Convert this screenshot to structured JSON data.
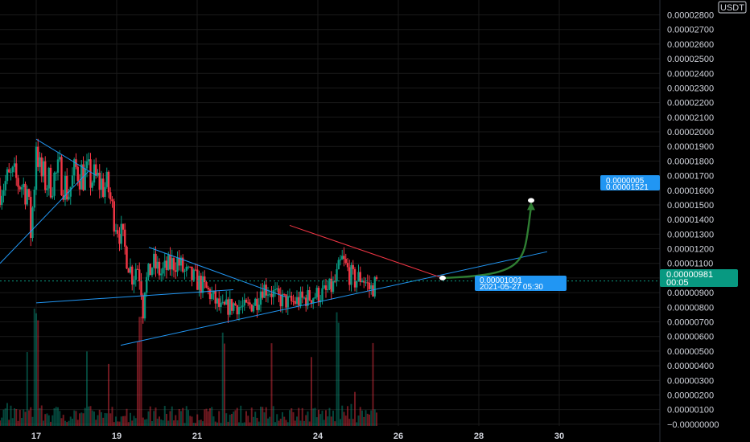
{
  "currency": {
    "label": "USDT"
  },
  "price_tag": {
    "value": "0.00000981",
    "sub": "00:05",
    "color": "#089981"
  },
  "callout_point": {
    "value": "0.00001001",
    "time": "2021-05-27 05:30"
  },
  "callout_target": {
    "value": "0.0000005",
    "sub": "0.00001521"
  },
  "colors": {
    "up": "#089981",
    "down": "#f23645",
    "trendline": "#2196f3",
    "resistance": "#f23645",
    "arrow": "#2e7d32",
    "callout_bg": "#2196f3",
    "grid": "#1a1a1a"
  },
  "chart_data": {
    "type": "candlestick",
    "x_ticks": [
      "17",
      "19",
      "21",
      "24",
      "26",
      "28",
      "30"
    ],
    "x_tick_days": [
      17,
      19,
      21,
      24,
      26,
      28,
      30
    ],
    "xlim": [
      16.1,
      32.5
    ],
    "ylim": [
      -1.2e-07,
      2.836e-05
    ],
    "y_ticks": [
      "0.00002800",
      "0.00002700",
      "0.00002600",
      "0.00002500",
      "0.00002400",
      "0.00002300",
      "0.00002200",
      "0.00002100",
      "0.00002000",
      "0.00001900",
      "0.00001800",
      "0.00001700",
      "0.00001600",
      "0.00001500",
      "0.00001400",
      "0.00001300",
      "0.00001200",
      "0.00001100",
      "0.00001000",
      "0.00000900",
      "0.00000800",
      "0.00000700",
      "0.00000600",
      "0.00000500",
      "0.00000400",
      "0.00000300",
      "0.00000200",
      "0.00000100",
      "−0.00000000"
    ],
    "y_tick_values": [
      2.8e-05,
      2.7e-05,
      2.6e-05,
      2.5e-05,
      2.4e-05,
      2.3e-05,
      2.2e-05,
      2.1e-05,
      2e-05,
      1.9e-05,
      1.8e-05,
      1.7e-05,
      1.6e-05,
      1.5e-05,
      1.4e-05,
      1.3e-05,
      1.2e-05,
      1.1e-05,
      1e-05,
      9e-06,
      8e-06,
      7e-06,
      6e-06,
      5e-06,
      4e-06,
      3e-06,
      2e-06,
      1e-06,
      0
    ],
    "candle_close_path": [
      [
        16.1,
        1.63e-05
      ],
      [
        16.4,
        1.68e-05
      ],
      [
        16.6,
        1.65e-05
      ],
      [
        16.8,
        1.6e-05
      ],
      [
        16.85,
        1.25e-05
      ],
      [
        16.95,
        1.63e-05
      ],
      [
        17.0,
        1.95e-05
      ],
      [
        17.1,
        1.7e-05
      ],
      [
        17.3,
        1.65e-05
      ],
      [
        17.6,
        1.72e-05
      ],
      [
        17.8,
        1.58e-05
      ],
      [
        18.0,
        1.75e-05
      ],
      [
        18.2,
        1.7e-05
      ],
      [
        18.4,
        1.68e-05
      ],
      [
        18.6,
        1.65e-05
      ],
      [
        18.8,
        1.6e-05
      ],
      [
        18.9,
        1.45e-05
      ],
      [
        19.0,
        1.38e-05
      ],
      [
        19.1,
        1.3e-05
      ],
      [
        19.2,
        1.2e-05
      ],
      [
        19.3,
        1.1e-05
      ],
      [
        19.4,
        1e-05
      ],
      [
        19.5,
        1.1e-05
      ],
      [
        19.6,
        9.8e-06
      ],
      [
        19.65,
        7.5e-06
      ],
      [
        19.7,
        9.5e-06
      ],
      [
        19.9,
        1.1e-05
      ],
      [
        20.1,
        1.03e-05
      ],
      [
        20.3,
        1.08e-05
      ],
      [
        20.5,
        1.12e-05
      ],
      [
        20.7,
        1.03e-05
      ],
      [
        21.0,
        9.8e-06
      ],
      [
        21.3,
        9e-06
      ],
      [
        21.6,
        7.8e-06
      ],
      [
        21.9,
        8.2e-06
      ],
      [
        22.2,
        7.9e-06
      ],
      [
        22.5,
        8.5e-06
      ],
      [
        22.6,
        9.4e-06
      ],
      [
        22.8,
        9.2e-06
      ],
      [
        23.0,
        8.6e-06
      ],
      [
        23.3,
        8.3e-06
      ],
      [
        23.6,
        8.5e-06
      ],
      [
        23.9,
        8.8e-06
      ],
      [
        24.2,
        9e-06
      ],
      [
        24.4,
        9.5e-06
      ],
      [
        24.6,
        1.12e-05
      ],
      [
        24.7,
        1.07e-05
      ],
      [
        24.9,
        9.8e-06
      ],
      [
        25.1,
        1.01e-05
      ],
      [
        25.3,
        9.2e-06
      ],
      [
        25.5,
        9.8e-06
      ]
    ],
    "volume_range": [
      0,
      8.2e-06
    ],
    "drawings": {
      "triangle1_upper": [
        [
          17.0,
          1.95e-05
        ],
        [
          18.5,
          1.7e-05
        ]
      ],
      "triangle1_lower": [
        [
          16.1,
          1.1e-05
        ],
        [
          18.3,
          1.73e-05
        ]
      ],
      "triangle2_upper": [
        [
          19.8,
          1.21e-05
        ],
        [
          23.2,
          8.7e-06
        ]
      ],
      "triangle2_lower": [
        [
          17.0,
          8.3e-06
        ],
        [
          21.9,
          9.2e-06
        ]
      ],
      "channel_support": [
        [
          19.1,
          5.4e-06
        ],
        [
          29.7,
          1.18e-05
        ]
      ],
      "resistance": [
        [
          23.3,
          1.36e-05
        ],
        [
          27.1,
          1e-05
        ]
      ],
      "target_arrow": [
        [
          27.1,
          1e-05
        ],
        [
          29.3,
          1.52e-05
        ]
      ]
    }
  }
}
